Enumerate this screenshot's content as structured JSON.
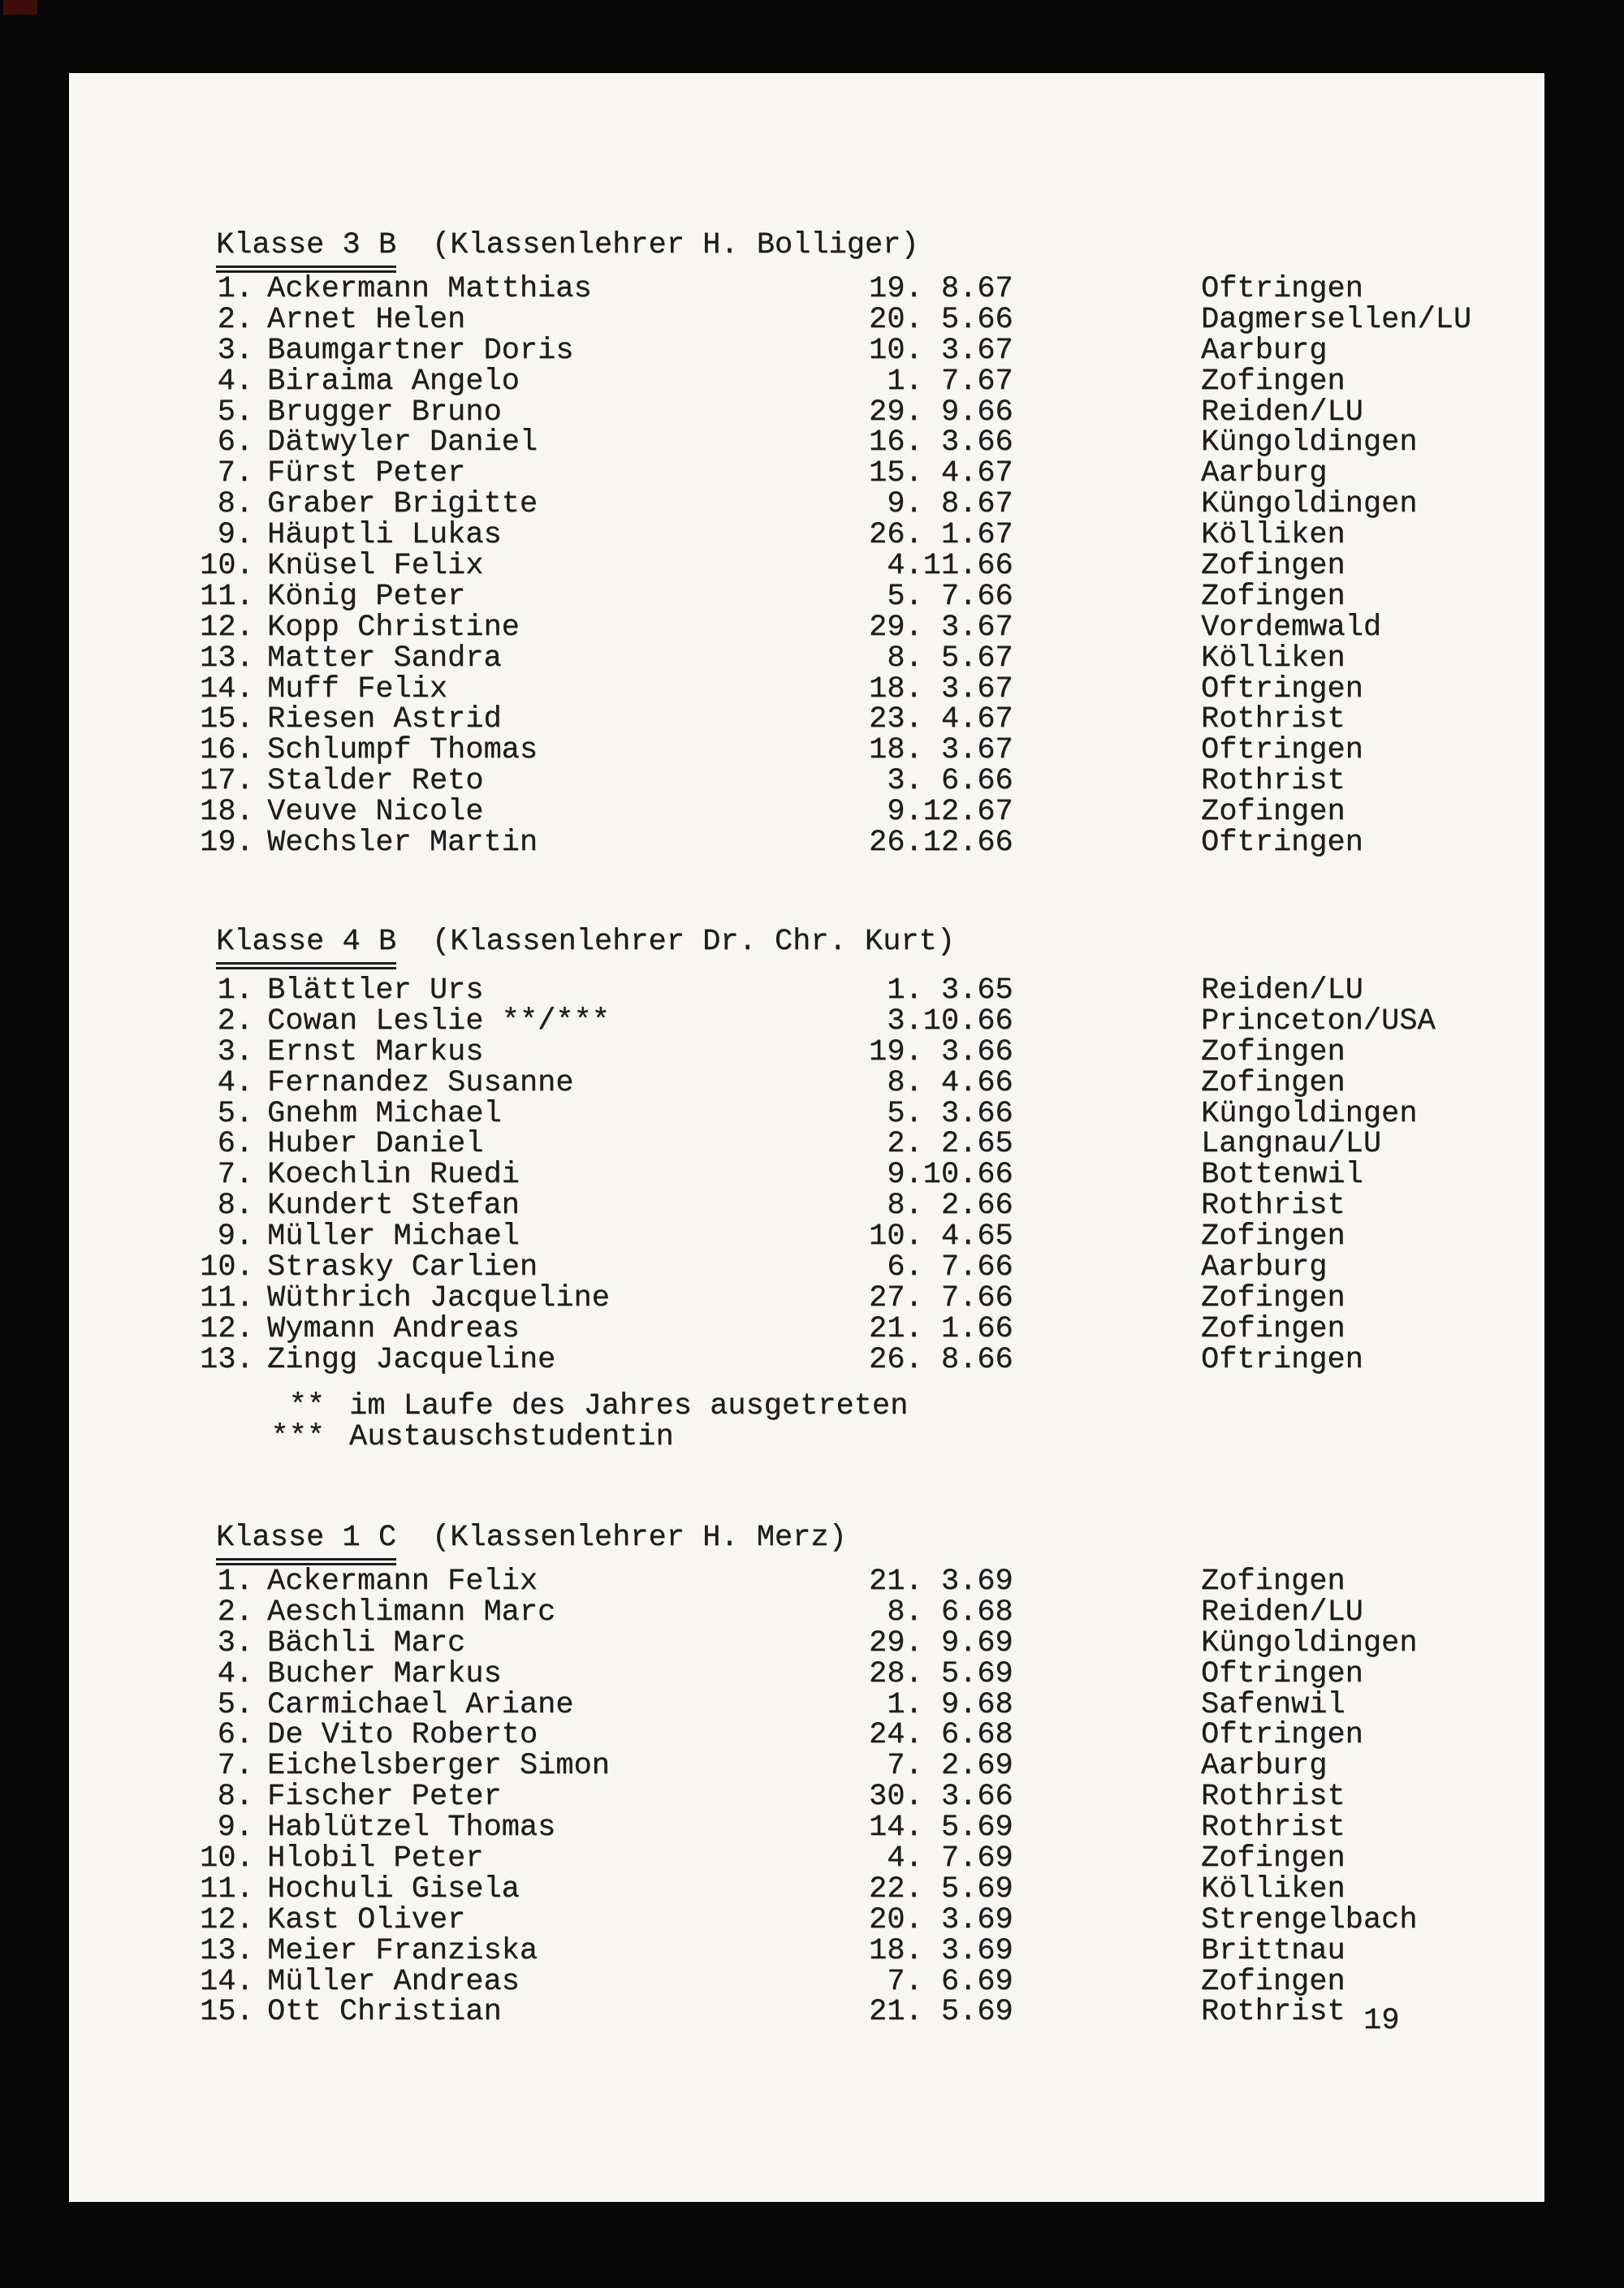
{
  "page_number": "19",
  "sections": [
    {
      "title": "Klasse 3 B",
      "teacher": "(Klassenlehrer H. Bolliger)",
      "students": [
        {
          "num": "1.",
          "name": "Ackermann Matthias",
          "birthdate": "19. 8.67",
          "place": "Oftringen"
        },
        {
          "num": "2.",
          "name": "Arnet Helen",
          "birthdate": "20. 5.66",
          "place": "Dagmersellen/LU"
        },
        {
          "num": "3.",
          "name": "Baumgartner Doris",
          "birthdate": "10. 3.67",
          "place": "Aarburg"
        },
        {
          "num": "4.",
          "name": "Biraima Angelo",
          "birthdate": " 1. 7.67",
          "place": "Zofingen"
        },
        {
          "num": "5.",
          "name": "Brugger Bruno",
          "birthdate": "29. 9.66",
          "place": "Reiden/LU"
        },
        {
          "num": "6.",
          "name": "Dätwyler Daniel",
          "birthdate": "16. 3.66",
          "place": "Küngoldingen"
        },
        {
          "num": "7.",
          "name": "Fürst Peter",
          "birthdate": "15. 4.67",
          "place": "Aarburg"
        },
        {
          "num": "8.",
          "name": "Graber Brigitte",
          "birthdate": " 9. 8.67",
          "place": "Küngoldingen"
        },
        {
          "num": "9.",
          "name": "Häuptli Lukas",
          "birthdate": "26. 1.67",
          "place": "Kölliken"
        },
        {
          "num": "10.",
          "name": "Knüsel Felix",
          "birthdate": " 4.11.66",
          "place": "Zofingen"
        },
        {
          "num": "11.",
          "name": "König Peter",
          "birthdate": " 5. 7.66",
          "place": "Zofingen"
        },
        {
          "num": "12.",
          "name": "Kopp Christine",
          "birthdate": "29. 3.67",
          "place": "Vordemwald"
        },
        {
          "num": "13.",
          "name": "Matter Sandra",
          "birthdate": " 8. 5.67",
          "place": "Kölliken"
        },
        {
          "num": "14.",
          "name": "Muff Felix",
          "birthdate": "18. 3.67",
          "place": "Oftringen"
        },
        {
          "num": "15.",
          "name": "Riesen Astrid",
          "birthdate": "23. 4.67",
          "place": "Rothrist"
        },
        {
          "num": "16.",
          "name": "Schlumpf Thomas",
          "birthdate": "18. 3.67",
          "place": "Oftringen"
        },
        {
          "num": "17.",
          "name": "Stalder Reto",
          "birthdate": " 3. 6.66",
          "place": "Rothrist"
        },
        {
          "num": "18.",
          "name": "Veuve Nicole",
          "birthdate": " 9.12.67",
          "place": "Zofingen"
        },
        {
          "num": "19.",
          "name": "Wechsler Martin",
          "birthdate": "26.12.66",
          "place": "Oftringen"
        }
      ],
      "footnotes": []
    },
    {
      "title": "Klasse 4 B",
      "teacher": "(Klassenlehrer Dr. Chr. Kurt)",
      "students": [
        {
          "num": "1.",
          "name": "Blättler Urs",
          "birthdate": " 1. 3.65",
          "place": "Reiden/LU"
        },
        {
          "num": "2.",
          "name": "Cowan Leslie **/***",
          "birthdate": " 3.10.66",
          "place": "Princeton/USA"
        },
        {
          "num": "3.",
          "name": "Ernst Markus",
          "birthdate": "19. 3.66",
          "place": "Zofingen"
        },
        {
          "num": "4.",
          "name": "Fernandez Susanne",
          "birthdate": " 8. 4.66",
          "place": "Zofingen"
        },
        {
          "num": "5.",
          "name": "Gnehm Michael",
          "birthdate": " 5. 3.66",
          "place": "Küngoldingen"
        },
        {
          "num": "6.",
          "name": "Huber Daniel",
          "birthdate": " 2. 2.65",
          "place": "Langnau/LU"
        },
        {
          "num": "7.",
          "name": "Koechlin Ruedi",
          "birthdate": " 9.10.66",
          "place": "Bottenwil"
        },
        {
          "num": "8.",
          "name": "Kundert Stefan",
          "birthdate": " 8. 2.66",
          "place": "Rothrist"
        },
        {
          "num": "9.",
          "name": "Müller Michael",
          "birthdate": "10. 4.65",
          "place": "Zofingen"
        },
        {
          "num": "10.",
          "name": "Strasky Carlien",
          "birthdate": " 6. 7.66",
          "place": "Aarburg"
        },
        {
          "num": "11.",
          "name": "Wüthrich Jacqueline",
          "birthdate": "27. 7.66",
          "place": "Zofingen"
        },
        {
          "num": "12.",
          "name": "Wymann Andreas",
          "birthdate": "21. 1.66",
          "place": "Zofingen"
        },
        {
          "num": "13.",
          "name": "Zingg Jacqueline",
          "birthdate": "26. 8.66",
          "place": "Oftringen"
        }
      ],
      "footnotes": [
        {
          "marker": "**",
          "text": "im Laufe des Jahres ausgetreten"
        },
        {
          "marker": "***",
          "text": "Austauschstudentin"
        }
      ]
    },
    {
      "title": "Klasse 1 C",
      "teacher": "(Klassenlehrer H. Merz)",
      "students": [
        {
          "num": "1.",
          "name": "Ackermann Felix",
          "birthdate": "21. 3.69",
          "place": "Zofingen"
        },
        {
          "num": "2.",
          "name": "Aeschlimann Marc",
          "birthdate": " 8. 6.68",
          "place": "Reiden/LU"
        },
        {
          "num": "3.",
          "name": "Bächli Marc",
          "birthdate": "29. 9.69",
          "place": "Küngoldingen"
        },
        {
          "num": "4.",
          "name": "Bucher Markus",
          "birthdate": "28. 5.69",
          "place": "Oftringen"
        },
        {
          "num": "5.",
          "name": "Carmichael Ariane",
          "birthdate": " 1. 9.68",
          "place": "Safenwil"
        },
        {
          "num": "6.",
          "name": "De Vito Roberto",
          "birthdate": "24. 6.68",
          "place": "Oftringen"
        },
        {
          "num": "7.",
          "name": "Eichelsberger Simon",
          "birthdate": " 7. 2.69",
          "place": "Aarburg"
        },
        {
          "num": "8.",
          "name": "Fischer Peter",
          "birthdate": "30. 3.66",
          "place": "Rothrist"
        },
        {
          "num": "9.",
          "name": "Hablützel Thomas",
          "birthdate": "14. 5.69",
          "place": "Rothrist"
        },
        {
          "num": "10.",
          "name": "Hlobil Peter",
          "birthdate": " 4. 7.69",
          "place": "Zofingen"
        },
        {
          "num": "11.",
          "name": "Hochuli Gisela",
          "birthdate": "22. 5.69",
          "place": "Kölliken"
        },
        {
          "num": "12.",
          "name": "Kast Oliver",
          "birthdate": "20. 3.69",
          "place": "Strengelbach"
        },
        {
          "num": "13.",
          "name": "Meier Franziska",
          "birthdate": "18. 3.69",
          "place": "Brittnau"
        },
        {
          "num": "14.",
          "name": "Müller Andreas",
          "birthdate": " 7. 6.69",
          "place": "Zofingen"
        },
        {
          "num": "15.",
          "name": "Ott Christian",
          "birthdate": "21. 5.69",
          "place": "Rothrist"
        }
      ],
      "footnotes": []
    }
  ]
}
